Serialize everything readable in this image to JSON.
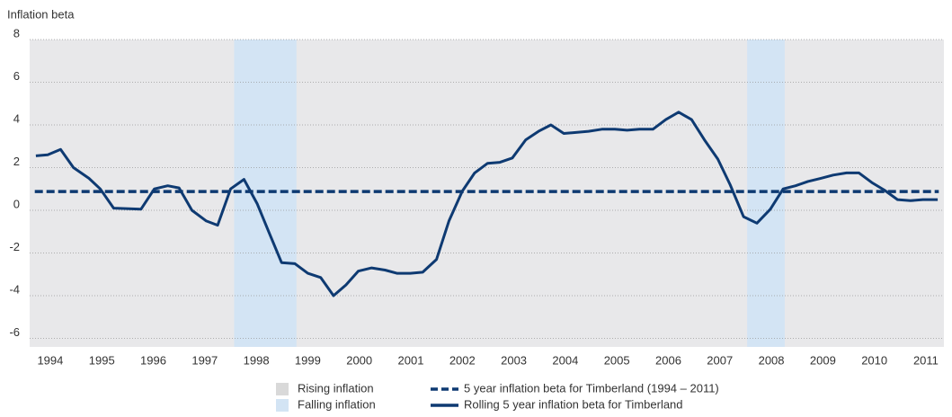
{
  "chart_data": {
    "type": "line",
    "y_label": "Inflation beta",
    "xlim": [
      1993.6,
      2011.35
    ],
    "xticks": [
      1994,
      1995,
      1996,
      1997,
      1998,
      1999,
      2000,
      2001,
      2002,
      2003,
      2004,
      2005,
      2006,
      2007,
      2008,
      2009,
      2010,
      2011
    ],
    "ylim": [
      -6.4,
      8
    ],
    "yticks": [
      8,
      6,
      4,
      2,
      0,
      -2,
      -4,
      -6
    ],
    "grid": true,
    "shading": [
      {
        "name": "Rising inflation",
        "color": "#e8e8ea"
      },
      {
        "name": "Falling inflation",
        "color": "#d3e4f4",
        "ranges": [
          [
            1997.57,
            1998.78
          ],
          [
            2007.53,
            2008.26
          ]
        ]
      }
    ],
    "series": [
      {
        "name": "5 year inflation beta for Timberland (1994 – 2011)",
        "color": "#0e3a72",
        "dashed": true,
        "x": [
          1993.7,
          2011.25
        ],
        "values": [
          0.88,
          0.88
        ]
      },
      {
        "name": "Rolling 5 year inflation beta for Timberland",
        "color": "#0e3a72",
        "dashed": false,
        "x": [
          1993.72,
          1993.95,
          1994.2,
          1994.45,
          1994.75,
          1994.97,
          1995.23,
          1995.76,
          1996.02,
          1996.28,
          1996.5,
          1996.75,
          1997.03,
          1997.25,
          1997.5,
          1997.76,
          1998.02,
          1998.24,
          1998.49,
          1998.75,
          1999.0,
          1999.25,
          1999.5,
          1999.74,
          1999.98,
          2000.24,
          2000.5,
          2000.73,
          2000.99,
          2001.23,
          2001.5,
          2001.74,
          2002.0,
          2002.24,
          2002.49,
          2002.73,
          2002.97,
          2003.23,
          2003.48,
          2003.72,
          2003.97,
          2004.45,
          2004.71,
          2004.96,
          2005.2,
          2005.44,
          2005.7,
          2005.95,
          2006.2,
          2006.45,
          2006.7,
          2006.96,
          2007.2,
          2007.46,
          2007.72,
          2007.98,
          2008.23,
          2008.47,
          2008.71,
          2008.96,
          2009.2,
          2009.46,
          2009.7,
          2009.95,
          2010.19,
          2010.45,
          2010.7,
          2010.94,
          2011.23
        ],
        "values": [
          2.55,
          2.6,
          2.85,
          2.0,
          1.5,
          1.0,
          0.1,
          0.05,
          1.0,
          1.15,
          1.05,
          0.0,
          -0.5,
          -0.7,
          1.0,
          1.45,
          0.3,
          -1.0,
          -2.45,
          -2.5,
          -2.95,
          -3.15,
          -4.0,
          -3.5,
          -2.85,
          -2.7,
          -2.8,
          -2.95,
          -2.95,
          -2.9,
          -2.3,
          -0.5,
          0.9,
          1.75,
          2.2,
          2.25,
          2.45,
          3.3,
          3.7,
          4.0,
          3.6,
          3.7,
          3.8,
          3.8,
          3.75,
          3.8,
          3.8,
          4.25,
          4.6,
          4.25,
          3.3,
          2.4,
          1.2,
          -0.3,
          -0.6,
          0.05,
          1.0,
          1.15,
          1.35,
          1.5,
          1.65,
          1.75,
          1.75,
          1.3,
          0.95,
          0.5,
          0.45,
          0.5,
          0.5
        ]
      }
    ]
  }
}
